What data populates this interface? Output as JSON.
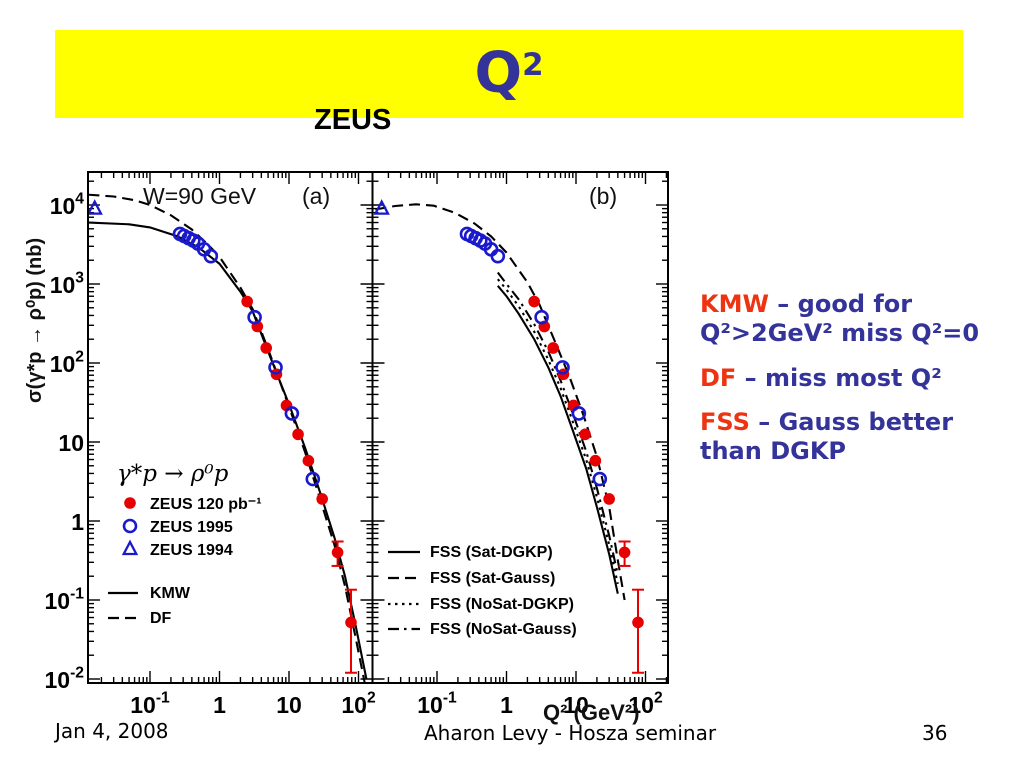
{
  "banner": {
    "title_base": "Q",
    "title_exp": "2",
    "background": "#ffff00",
    "title_color": "#333399"
  },
  "notes": [
    {
      "term": "KMW",
      "rest": " – good for Q²>2GeV² miss Q²=0"
    },
    {
      "term": "DF",
      "rest": " – miss most Q²"
    },
    {
      "term": "FSS",
      "rest": " – Gauss better than DGKP"
    }
  ],
  "notes_colors": {
    "term": "#ee3311",
    "body": "#333399"
  },
  "footer": {
    "date": "Jan 4, 2008",
    "center": "Aharon Levy - Hosza seminar",
    "page": "36"
  },
  "chart_data": {
    "type": "scatter",
    "title": "ZEUS",
    "annotation": "W=90 GeV",
    "xlabel": "Q² (GeV²)",
    "ylabel": "σ(γ*p → ρ⁰p) (nb)",
    "x_scale": "log",
    "y_scale": "log",
    "x_range": [
      0.013,
      210
    ],
    "y_range": [
      0.009,
      26000
    ],
    "grid": false,
    "x_tick_decades": [
      -1,
      0,
      1,
      2
    ],
    "x_tick_labels": [
      "10^-1",
      "1",
      "10",
      "10^2"
    ],
    "y_tick_decades": [
      4,
      3,
      2,
      1,
      0,
      -1,
      -2
    ],
    "y_tick_labels": [
      "10^4",
      "10^3",
      "10^2",
      "10",
      "1",
      "10^-1",
      "10^-2"
    ],
    "series": [
      {
        "name": "ZEUS 120 pb⁻¹",
        "marker": "filled-circle",
        "color": "#e60000",
        "points": [
          [
            2.5,
            600
          ],
          [
            3.5,
            290
          ],
          [
            4.7,
            155
          ],
          [
            6.6,
            72
          ],
          [
            9.2,
            29
          ],
          [
            13.5,
            12.5
          ],
          [
            19,
            5.8
          ],
          [
            30,
            1.9
          ],
          [
            50,
            0.4
          ],
          [
            78,
            0.052
          ]
        ],
        "errors": [
          {
            "q": 50,
            "lo": 0.27,
            "hi": 0.55
          },
          {
            "q": 78,
            "lo": 0.012,
            "hi": 0.135
          }
        ]
      },
      {
        "name": "ZEUS 1995",
        "marker": "open-circle",
        "color": "#1a1acc",
        "points": [
          [
            0.27,
            4300
          ],
          [
            0.31,
            4050
          ],
          [
            0.36,
            3800
          ],
          [
            0.42,
            3550
          ],
          [
            0.49,
            3250
          ],
          [
            0.6,
            2750
          ],
          [
            0.75,
            2250
          ],
          [
            3.2,
            380
          ],
          [
            6.4,
            88
          ],
          [
            11,
            23
          ],
          [
            22,
            3.4
          ]
        ]
      },
      {
        "name": "ZEUS 1994",
        "marker": "open-triangle",
        "color": "#1a1acc",
        "points": [
          [
            0.016,
            9000
          ]
        ]
      }
    ],
    "panels": [
      {
        "label": "(a)",
        "process_label": "γ*p → ρ⁰p",
        "curves": [
          {
            "name": "KMW",
            "style": "solid",
            "points": [
              [
                0.013,
                6000
              ],
              [
                0.05,
                5700
              ],
              [
                0.1,
                5200
              ],
              [
                0.25,
                4000
              ],
              [
                0.5,
                2900
              ],
              [
                1,
                1800
              ],
              [
                2,
                800
              ],
              [
                3,
                450
              ],
              [
                5,
                140
              ],
              [
                10,
                30
              ],
              [
                17,
                8.5
              ],
              [
                28,
                2.3
              ],
              [
                45,
                0.62
              ],
              [
                64,
                0.2
              ],
              [
                90,
                0.05
              ],
              [
                130,
                0.01
              ]
            ]
          },
          {
            "name": "DF",
            "style": "dashed",
            "points": [
              [
                0.013,
                13500
              ],
              [
                0.03,
                12800
              ],
              [
                0.06,
                11500
              ],
              [
                0.1,
                10000
              ],
              [
                0.2,
                7400
              ],
              [
                0.4,
                4900
              ],
              [
                0.7,
                3100
              ],
              [
                1,
                2200
              ],
              [
                2,
                900
              ],
              [
                3,
                480
              ],
              [
                5,
                150
              ],
              [
                10,
                28
              ],
              [
                17,
                7.5
              ],
              [
                28,
                1.9
              ],
              [
                45,
                0.5
              ],
              [
                64,
                0.15
              ],
              [
                90,
                0.035
              ],
              [
                130,
                0.007
              ]
            ]
          }
        ]
      },
      {
        "label": "(b)",
        "curves": [
          {
            "name": "FSS (Sat-DGKP)",
            "style": "solid",
            "points": [
              [
                0.75,
                950
              ],
              [
                1,
                700
              ],
              [
                1.5,
                420
              ],
              [
                2.5,
                200
              ],
              [
                4,
                88
              ],
              [
                6,
                38
              ],
              [
                9,
                14
              ],
              [
                14,
                4.6
              ],
              [
                20,
                1.5
              ],
              [
                30,
                0.38
              ],
              [
                40,
                0.12
              ]
            ]
          },
          {
            "name": "FSS (Sat-Gauss)",
            "style": "dashed",
            "points": [
              [
                0.013,
                8800
              ],
              [
                0.025,
                9700
              ],
              [
                0.05,
                10200
              ],
              [
                0.09,
                9800
              ],
              [
                0.18,
                8000
              ],
              [
                0.35,
                5800
              ],
              [
                0.6,
                4000
              ],
              [
                1,
                2500
              ],
              [
                2,
                1050
              ],
              [
                3,
                540
              ],
              [
                5,
                185
              ],
              [
                8,
                68
              ],
              [
                13,
                21
              ],
              [
                20,
                6.5
              ],
              [
                30,
                1.5
              ],
              [
                40,
                0.32
              ],
              [
                50,
                0.1
              ]
            ]
          },
          {
            "name": "FSS (NoSat-DGKP)",
            "style": "dotted",
            "points": [
              [
                0.75,
                1150
              ],
              [
                1,
                850
              ],
              [
                1.5,
                520
              ],
              [
                2.5,
                250
              ],
              [
                4,
                110
              ],
              [
                6,
                48
              ],
              [
                9,
                18
              ],
              [
                14,
                6
              ],
              [
                20,
                2
              ],
              [
                30,
                0.5
              ],
              [
                40,
                0.16
              ]
            ]
          },
          {
            "name": "FSS (NoSat-Gauss)",
            "style": "dashdot",
            "points": [
              [
                0.75,
                1400
              ],
              [
                1,
                1000
              ],
              [
                1.5,
                640
              ],
              [
                2.5,
                310
              ],
              [
                4,
                140
              ],
              [
                6,
                60
              ],
              [
                9,
                23
              ],
              [
                14,
                7.6
              ],
              [
                20,
                2.6
              ],
              [
                30,
                0.65
              ],
              [
                40,
                0.21
              ]
            ]
          }
        ]
      }
    ],
    "legend_position": {
      "panel_a": "lower-left",
      "panel_b": "lower-left"
    }
  }
}
